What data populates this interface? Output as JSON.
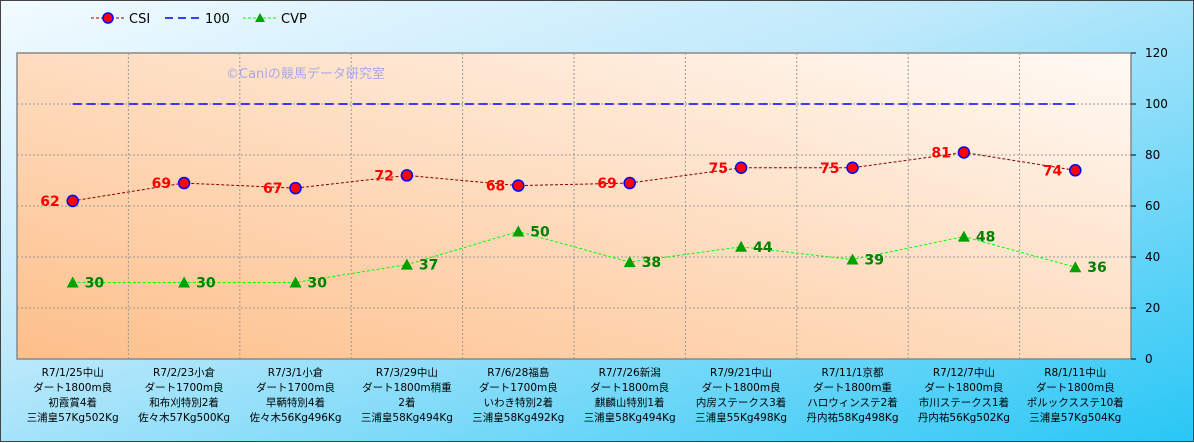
{
  "chart_data": {
    "type": "line",
    "watermark": "©Caniの競馬データ研究室",
    "categories": [
      [
        "R7/1/25中山",
        "ダート1800m良",
        "初霞賞4着",
        "三浦皇57Kg502Kg"
      ],
      [
        "R7/2/23小倉",
        "ダート1700m良",
        "和布刈特別2着",
        "佐々木57Kg500Kg"
      ],
      [
        "R7/3/1小倉",
        "ダート1700m良",
        "早鞆特別4着",
        "佐々木56Kg496Kg"
      ],
      [
        "R7/3/29中山",
        "ダート1800m稍重",
        "2着",
        "三浦皇58Kg494Kg"
      ],
      [
        "R7/6/28福島",
        "ダート1700m良",
        "いわき特別2着",
        "三浦皇58Kg492Kg"
      ],
      [
        "R7/7/26新潟",
        "ダート1800m良",
        "麒麟山特別1着",
        "三浦皇58Kg494Kg"
      ],
      [
        "R7/9/21中山",
        "ダート1800m良",
        "内房ステークス3着",
        "三浦皇55Kg498Kg"
      ],
      [
        "R7/11/1京都",
        "ダート1800m重",
        "ハロウィンステ2着",
        "丹内祐58Kg498Kg"
      ],
      [
        "R7/12/7中山",
        "ダート1800m良",
        "市川ステークス1着",
        "丹内祐56Kg502Kg"
      ],
      [
        "R8/1/11中山",
        "ダート1800m良",
        "ポルックスステ10着",
        "三浦皇57Kg504Kg"
      ]
    ],
    "series": [
      {
        "name": "CSI",
        "values": [
          62,
          69,
          67,
          72,
          68,
          69,
          75,
          75,
          81,
          74
        ],
        "color": "#8b0000",
        "marker": "circle",
        "marker_color": "#ff0000",
        "marker_edge": "#0000ff",
        "label_color": "#ff0000"
      },
      {
        "name": "100",
        "values": [
          100,
          100,
          100,
          100,
          100,
          100,
          100,
          100,
          100,
          100
        ],
        "color": "#0000ff"
      },
      {
        "name": "CVP",
        "values": [
          30,
          30,
          30,
          37,
          50,
          38,
          44,
          39,
          48,
          36
        ],
        "color": "#00ff00",
        "marker": "triangle",
        "marker_color": "#00a000",
        "label_color": "#008000"
      }
    ],
    "yaxis": {
      "position": "right",
      "ylim": [
        0,
        120
      ],
      "ticks": [
        0,
        20,
        40,
        60,
        80,
        100,
        120
      ]
    },
    "grid": true,
    "legend": "top-left"
  }
}
